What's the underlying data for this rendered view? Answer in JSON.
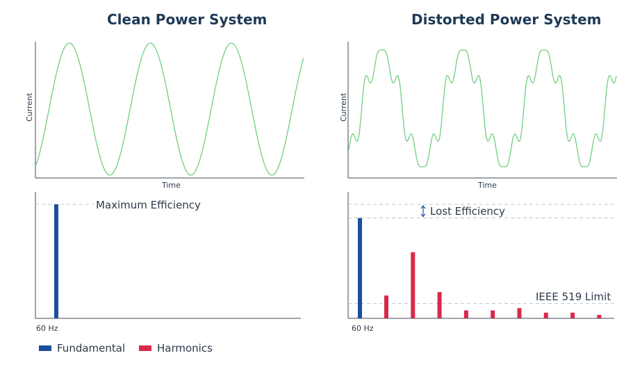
{
  "colors": {
    "wave": "#6fcf7f",
    "axis": "#3b4a5a",
    "fundamental": "#1a4f9c",
    "harmonics": "#d9294a",
    "dashed": "#b9c6d2"
  },
  "clean": {
    "title": "Clean Power System",
    "wave_ylabel": "Current",
    "wave_xlabel": "Time",
    "spectrum_tick": "60 Hz",
    "annotation": "Maximum Efficiency"
  },
  "distorted": {
    "title": "Distorted Power System",
    "wave_ylabel": "Current",
    "wave_xlabel": "Time",
    "spectrum_tick": "60 Hz",
    "annotation": "Lost Efficiency",
    "limit_label": "IEEE 519 Limit"
  },
  "legend": {
    "fundamental_label": "Fundamental",
    "harmonics_label": "Harmonics"
  },
  "chart_data": [
    {
      "type": "line",
      "title": "Clean Power System",
      "xlabel": "Time",
      "ylabel": "Current",
      "cycles": 3.3,
      "harmonics": []
    },
    {
      "type": "line",
      "title": "Distorted Power System",
      "xlabel": "Time",
      "ylabel": "Current",
      "cycles": 3.3,
      "harmonics": [
        {
          "order": 5,
          "amplitude": 0.18
        },
        {
          "order": 7,
          "amplitude": 0.12
        }
      ]
    },
    {
      "type": "bar",
      "series": [
        {
          "name": "Fundamental",
          "values": [
            1.0
          ]
        }
      ],
      "max_level": 1.0
    },
    {
      "type": "bar",
      "series": [
        {
          "name": "Fundamental",
          "values": [
            0.88
          ]
        },
        {
          "name": "Harmonics",
          "values": [
            0.2,
            0.58,
            0.23,
            0.07,
            0.07,
            0.09,
            0.05,
            0.05,
            0.03
          ]
        }
      ],
      "max_level": 1.0,
      "ieee_limit": 0.13
    }
  ]
}
